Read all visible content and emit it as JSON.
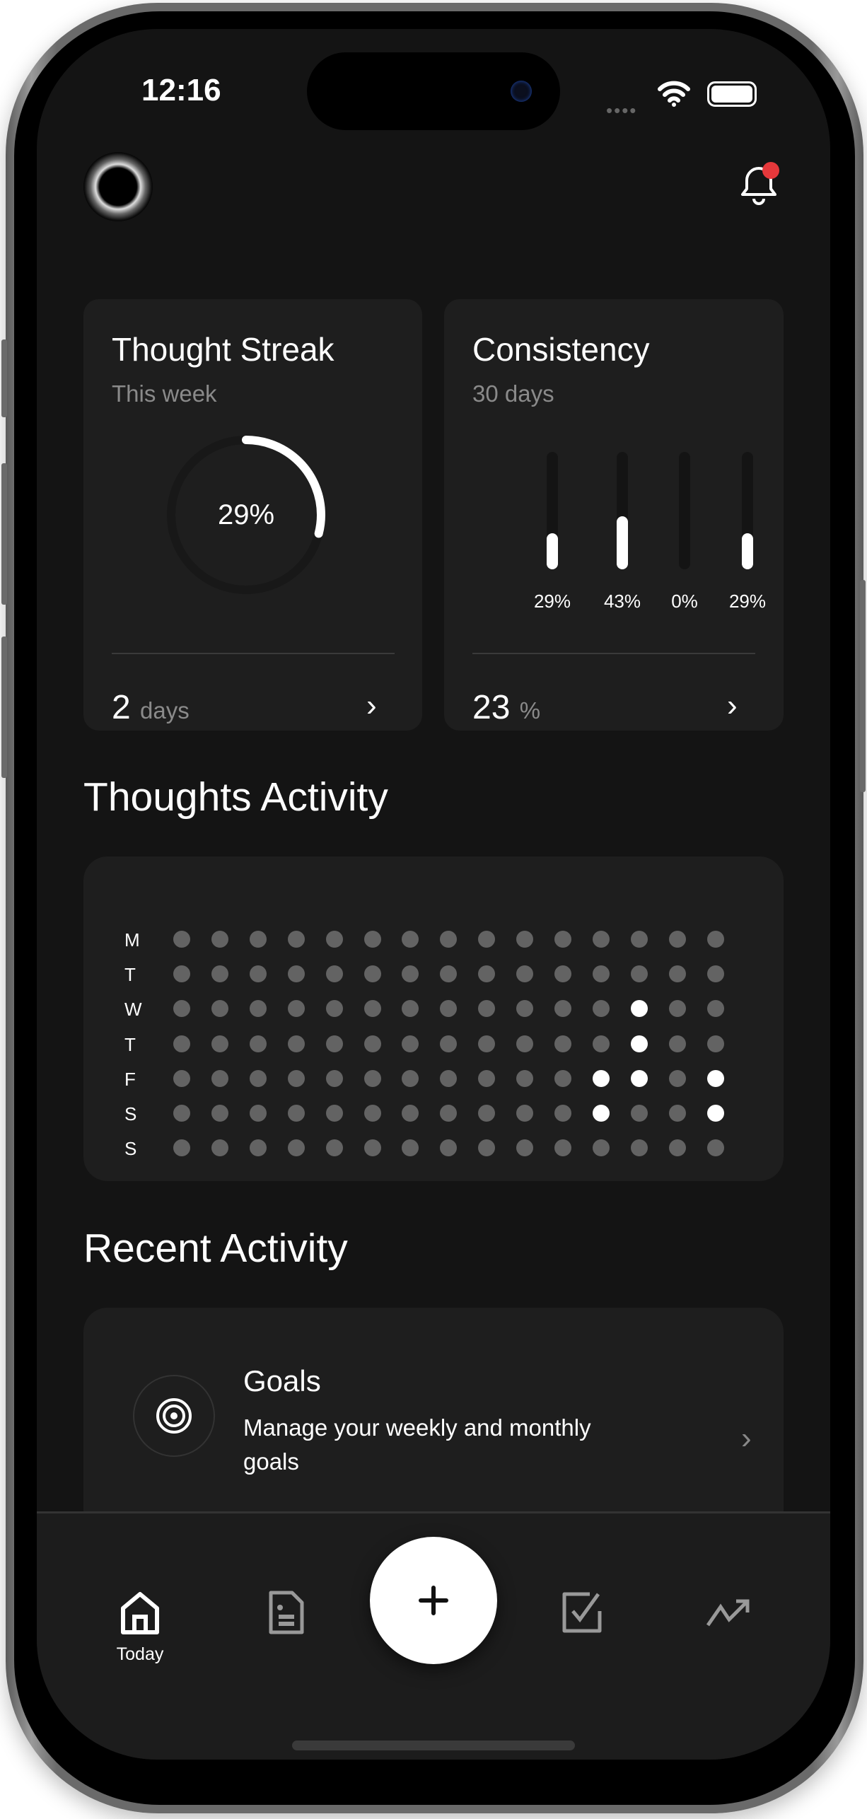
{
  "status_bar": {
    "time": "12:16"
  },
  "header": {
    "avatar_icon": "sparkle-ring-avatar",
    "notification_icon": "bell-icon",
    "notification_badge_color": "#e5383b"
  },
  "thought_streak": {
    "title": "Thought Streak",
    "subtitle": "This week",
    "percent": 29,
    "percent_label": "29%",
    "value": "2",
    "unit": "days"
  },
  "consistency": {
    "title": "Consistency",
    "subtitle": "30 days",
    "bars": [
      {
        "value": 29,
        "label": "29%"
      },
      {
        "value": 43,
        "label": "43%"
      },
      {
        "value": 0,
        "label": "0%"
      },
      {
        "value": 29,
        "label": "29%"
      }
    ],
    "value": "23",
    "unit": "%"
  },
  "thoughts_activity": {
    "title": "Thoughts Activity",
    "days": [
      "M",
      "T",
      "W",
      "T",
      "F",
      "S",
      "S"
    ],
    "grid": [
      [
        0,
        0,
        0,
        0,
        0,
        0,
        0,
        0,
        0,
        0,
        0,
        0,
        0,
        0,
        0
      ],
      [
        0,
        0,
        0,
        0,
        0,
        0,
        0,
        0,
        0,
        0,
        0,
        0,
        0,
        0,
        0
      ],
      [
        0,
        0,
        0,
        0,
        0,
        0,
        0,
        0,
        0,
        0,
        0,
        0,
        1,
        0,
        0
      ],
      [
        0,
        0,
        0,
        0,
        0,
        0,
        0,
        0,
        0,
        0,
        0,
        0,
        1,
        0,
        0
      ],
      [
        0,
        0,
        0,
        0,
        0,
        0,
        0,
        0,
        0,
        0,
        0,
        1,
        1,
        0,
        1
      ],
      [
        0,
        0,
        0,
        0,
        0,
        0,
        0,
        0,
        0,
        0,
        0,
        1,
        0,
        0,
        1
      ],
      [
        0,
        0,
        0,
        0,
        0,
        0,
        0,
        0,
        0,
        0,
        0,
        0,
        0,
        0,
        0
      ]
    ],
    "active_color": "#ffffff",
    "inactive_color": "#636363"
  },
  "recent_activity": {
    "title": "Recent Activity",
    "items": [
      {
        "title": "Goals",
        "description_line1": "Manage your weekly and monthly",
        "description_line2": "goals",
        "icon": "target-icon"
      }
    ]
  },
  "nav": {
    "items": [
      {
        "label": "Today",
        "icon": "home-icon",
        "active": true
      },
      {
        "label": "",
        "icon": "document-icon"
      },
      {
        "label": "",
        "icon": "plus-icon"
      },
      {
        "label": "",
        "icon": "checkbox-icon"
      },
      {
        "label": "",
        "icon": "trending-up-icon"
      }
    ]
  }
}
